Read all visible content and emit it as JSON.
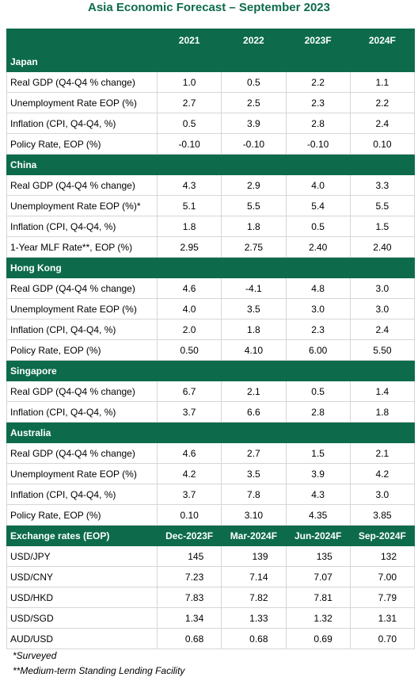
{
  "title": "Asia Economic Forecast – September 2023",
  "table": {
    "columns": [
      "2021",
      "2022",
      "2023F",
      "2024F"
    ],
    "sections": [
      {
        "name": "Japan",
        "rows": [
          {
            "label": "Real GDP (Q4-Q4 % change)",
            "values": [
              "1.0",
              "0.5",
              "2.2",
              "1.1"
            ]
          },
          {
            "label": "Unemployment Rate EOP (%)",
            "values": [
              "2.7",
              "2.5",
              "2.3",
              "2.2"
            ]
          },
          {
            "label": "Inflation (CPI, Q4-Q4, %)",
            "values": [
              "0.5",
              "3.9",
              "2.8",
              "2.4"
            ]
          },
          {
            "label": "Policy Rate, EOP (%)",
            "values": [
              "-0.10",
              "-0.10",
              "-0.10",
              "0.10"
            ]
          }
        ]
      },
      {
        "name": "China",
        "rows": [
          {
            "label": "Real GDP (Q4-Q4 % change)",
            "values": [
              "4.3",
              "2.9",
              "4.0",
              "3.3"
            ]
          },
          {
            "label": "Unemployment Rate EOP (%)*",
            "values": [
              "5.1",
              "5.5",
              "5.4",
              "5.5"
            ]
          },
          {
            "label": "Inflation (CPI, Q4-Q4, %)",
            "values": [
              "1.8",
              "1.8",
              "0.5",
              "1.5"
            ]
          },
          {
            "label": "1-Year MLF Rate**, EOP (%)",
            "values": [
              "2.95",
              "2.75",
              "2.40",
              "2.40"
            ]
          }
        ]
      },
      {
        "name": "Hong Kong",
        "rows": [
          {
            "label": "Real GDP (Q4-Q4 % change)",
            "values": [
              "4.6",
              "-4.1",
              "4.8",
              "3.0"
            ]
          },
          {
            "label": "Unemployment Rate EOP (%)",
            "values": [
              "4.0",
              "3.5",
              "3.0",
              "3.0"
            ]
          },
          {
            "label": "Inflation (CPI, Q4-Q4, %)",
            "values": [
              "2.0",
              "1.8",
              "2.3",
              "2.4"
            ]
          },
          {
            "label": "Policy Rate, EOP (%)",
            "values": [
              "0.50",
              "4.10",
              "6.00",
              "5.50"
            ]
          }
        ]
      },
      {
        "name": "Singapore",
        "rows": [
          {
            "label": "Real GDP (Q4-Q4 % change)",
            "values": [
              "6.7",
              "2.1",
              "0.5",
              "1.4"
            ]
          },
          {
            "label": "Inflation (CPI, Q4-Q4, %)",
            "values": [
              "3.7",
              "6.6",
              "2.8",
              "1.8"
            ]
          }
        ]
      },
      {
        "name": "Australia",
        "rows": [
          {
            "label": "Real GDP (Q4-Q4 % change)",
            "values": [
              "4.6",
              "2.7",
              "1.5",
              "2.1"
            ]
          },
          {
            "label": "Unemployment Rate EOP (%)",
            "values": [
              "4.2",
              "3.5",
              "3.9",
              "4.2"
            ]
          },
          {
            "label": "Inflation (CPI, Q4-Q4, %)",
            "values": [
              "3.7",
              "7.8",
              "4.3",
              "3.0"
            ]
          },
          {
            "label": "Policy Rate, EOP (%)",
            "values": [
              "0.10",
              "3.10",
              "4.35",
              "3.85"
            ]
          }
        ]
      }
    ]
  },
  "exchange": {
    "title": "Exchange rates (EOP)",
    "columns": [
      "Dec-2023F",
      "Mar-2024F",
      "Jun-2024F",
      "Sep-2024F"
    ],
    "rows": [
      {
        "label": "USD/JPY",
        "values": [
          "145",
          "139",
          "135",
          "132"
        ]
      },
      {
        "label": "USD/CNY",
        "values": [
          "7.23",
          "7.14",
          "7.07",
          "7.00"
        ]
      },
      {
        "label": "USD/HKD",
        "values": [
          "7.83",
          "7.82",
          "7.81",
          "7.79"
        ]
      },
      {
        "label": "USD/SGD",
        "values": [
          "1.34",
          "1.33",
          "1.32",
          "1.31"
        ]
      },
      {
        "label": "AUD/USD",
        "values": [
          "0.68",
          "0.68",
          "0.69",
          "0.70"
        ]
      }
    ]
  },
  "footnotes": [
    "*Surveyed",
    "**Medium-term Standing Lending Facility"
  ]
}
